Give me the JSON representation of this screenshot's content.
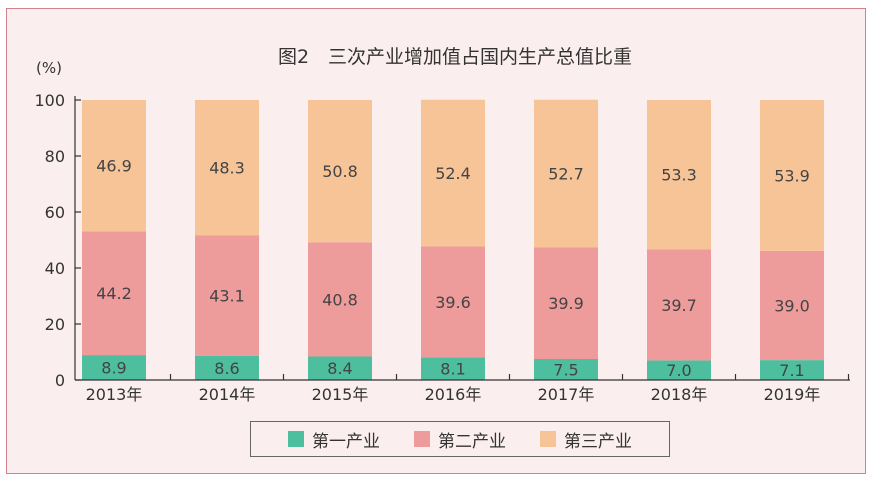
{
  "chart_data": {
    "type": "bar",
    "stacked": true,
    "title": "图2　三次产业增加值占国内生产总值比重",
    "ylabel": "(%)",
    "ylim": [
      0,
      100
    ],
    "yticks": [
      "0",
      "20",
      "40",
      "60",
      "80",
      "100"
    ],
    "categories": [
      "2013年",
      "2014年",
      "2015年",
      "2016年",
      "2017年",
      "2018年",
      "2019年"
    ],
    "series": [
      {
        "name": "第一产业",
        "color": "#4dbf9f",
        "values": [
          8.9,
          8.6,
          8.4,
          8.1,
          7.5,
          7.0,
          7.1
        ],
        "labels": [
          "8.9",
          "8.6",
          "8.4",
          "8.1",
          "7.5",
          "7.0",
          "7.1"
        ]
      },
      {
        "name": "第二产业",
        "color": "#ee9b9b",
        "values": [
          44.2,
          43.1,
          40.8,
          39.6,
          39.9,
          39.7,
          39.0
        ],
        "labels": [
          "44.2",
          "43.1",
          "40.8",
          "39.6",
          "39.9",
          "39.7",
          "39.0"
        ]
      },
      {
        "name": "第三产业",
        "color": "#f7c498",
        "values": [
          46.9,
          48.3,
          50.8,
          52.4,
          52.7,
          53.3,
          53.9
        ],
        "labels": [
          "46.9",
          "48.3",
          "50.8",
          "52.4",
          "52.7",
          "53.3",
          "53.9"
        ]
      }
    ],
    "legend": "bottom",
    "grid": false
  }
}
